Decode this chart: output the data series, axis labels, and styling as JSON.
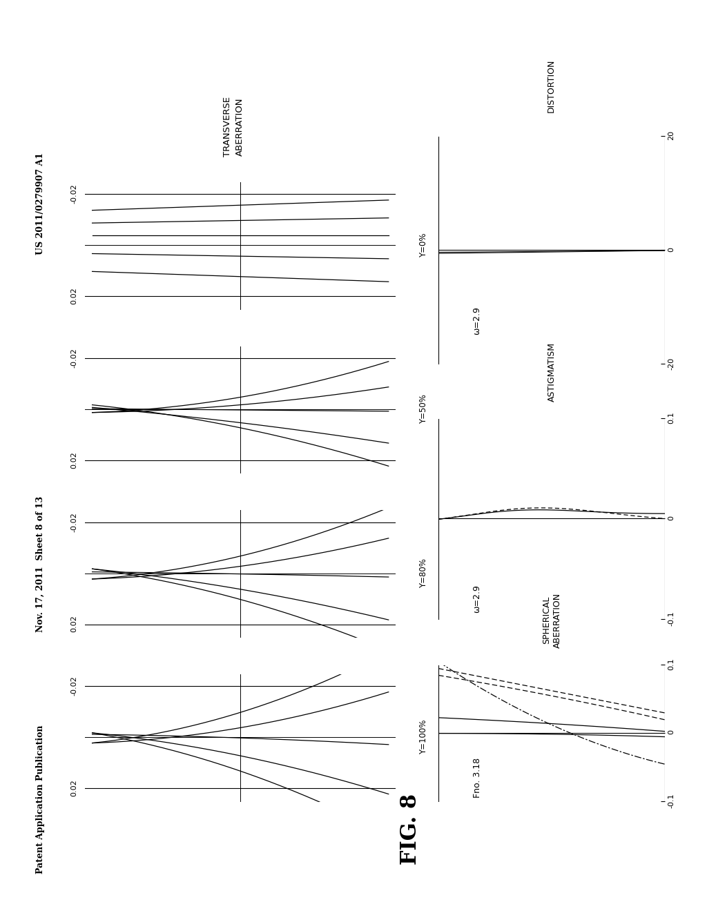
{
  "header_left": "Patent Application Publication",
  "header_mid": "Nov. 17, 2011  Sheet 8 of 13",
  "header_right": "US 2011/0279907 A1",
  "fig_label": "FIG. 8",
  "background_color": "#ffffff",
  "text_color": "#000000",
  "transverse_labels": [
    "Y=100%",
    "Y=80%",
    "Y=50%",
    "Y=0%"
  ],
  "transverse_title": "TRANSVERSE\nABERRATION",
  "spherical_label": "Fno. 3.18",
  "spherical_title": "SPHERICAL\nABERRATION",
  "astigmatism_label": "ω=2.9",
  "astigmatism_title": "ASTIGMATISM",
  "distortion_label": "ω=2.9",
  "distortion_title": "DISTORTION"
}
